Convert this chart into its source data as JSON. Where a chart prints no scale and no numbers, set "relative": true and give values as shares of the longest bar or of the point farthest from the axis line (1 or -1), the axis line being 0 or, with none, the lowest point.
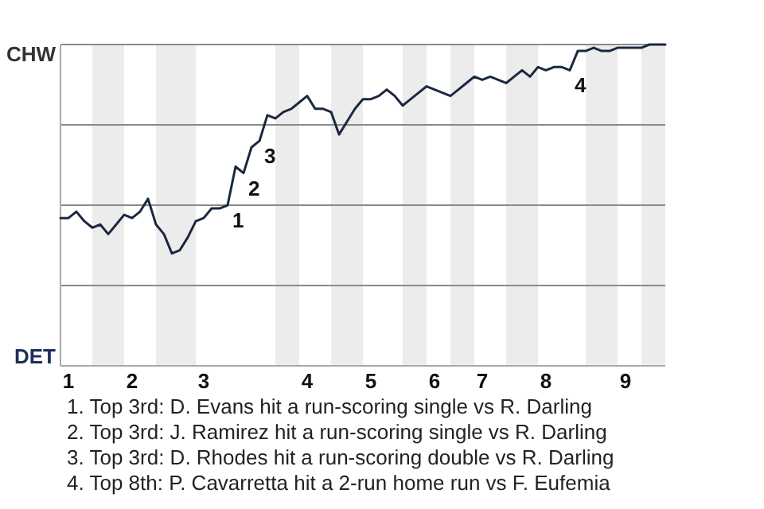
{
  "chart_data": {
    "type": "line",
    "relative": true,
    "categories": [
      null,
      "1",
      null,
      null,
      null,
      null,
      null,
      null,
      null,
      "2",
      null,
      null,
      null,
      null,
      null,
      null,
      null,
      null,
      "3",
      null,
      null,
      null,
      null,
      null,
      null,
      null,
      null,
      null,
      null,
      null,
      null,
      "4",
      null,
      null,
      null,
      null,
      null,
      null,
      null,
      "5",
      null,
      null,
      null,
      null,
      null,
      null,
      null,
      "6",
      null,
      null,
      null,
      null,
      null,
      "7",
      null,
      null,
      null,
      null,
      null,
      null,
      null,
      "8",
      null,
      null,
      null,
      null,
      null,
      null,
      null,
      null,
      null,
      "9",
      null,
      null,
      null,
      null,
      null
    ],
    "marker": "none",
    "line_style": "solid",
    "ref_lines": [
      {
        "axis": "y",
        "value": 0.25,
        "color": "#8a8a8a"
      },
      {
        "axis": "y",
        "value": 0.5,
        "color": "#8a8a8a"
      },
      {
        "axis": "y",
        "value": 0.75,
        "color": "#8a8a8a"
      },
      {
        "axis": "y",
        "value": 1,
        "color": "#8a8a8a"
      }
    ],
    "series": [
      {
        "color": "#1c2841",
        "values": [
          0.46,
          0.46,
          0.48,
          0.45,
          0.43,
          0.44,
          0.41,
          0.44,
          0.47,
          0.46,
          0.48,
          0.52,
          0.44,
          0.41,
          0.35,
          0.36,
          0.4,
          0.45,
          0.46,
          0.49,
          0.49,
          0.5,
          0.62,
          0.6,
          0.68,
          0.7,
          0.78,
          0.77,
          0.79,
          0.8,
          0.82,
          0.84,
          0.8,
          0.8,
          0.79,
          0.72,
          0.76,
          0.8,
          0.83,
          0.83,
          0.84,
          0.86,
          0.84,
          0.81,
          0.83,
          0.85,
          0.87,
          0.86,
          0.85,
          0.84,
          0.86,
          0.88,
          0.9,
          0.89,
          0.9,
          0.89,
          0.88,
          0.9,
          0.92,
          0.9,
          0.93,
          0.92,
          0.93,
          0.93,
          0.92,
          0.98,
          0.98,
          0.99,
          0.98,
          0.98,
          0.99,
          0.99,
          0.99,
          0.99,
          1,
          1,
          1
        ]
      }
    ],
    "annotations": [
      "CHW",
      "DET",
      "1",
      "2",
      "3",
      "4",
      "1. Top 3rd: D. Evans hit a run-scoring single vs R. Darling",
      "2. Top 3rd: J. Ramirez hit a run-scoring single vs R. Darling",
      "3. Top 3rd: D. Rhodes hit a run-scoring double vs R. Darling",
      "4. Top 8th: P. Cavarretta hit a 2-run home run vs F. Eufemia"
    ]
  }
}
